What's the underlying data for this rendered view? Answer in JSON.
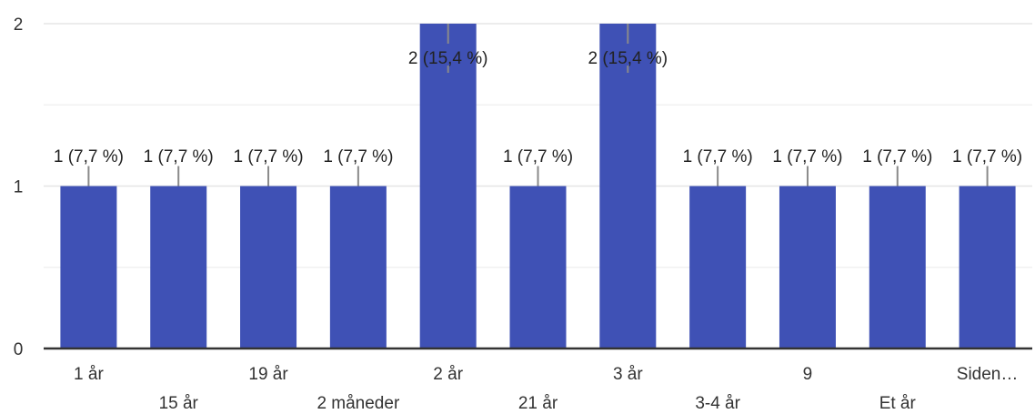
{
  "chart_data": {
    "type": "bar",
    "categories": [
      "1 år",
      "15 år",
      "19 år",
      "2 måneder",
      "2 år",
      "21 år",
      "3 år",
      "3-4 år",
      "9",
      "Et år",
      "Siden…"
    ],
    "values": [
      1,
      1,
      1,
      1,
      2,
      1,
      2,
      1,
      1,
      1,
      1
    ],
    "data_labels": [
      "1 (7,7 %)",
      "1 (7,7 %)",
      "1 (7,7 %)",
      "1 (7,7 %)",
      "2 (15,4 %)",
      "1 (7,7 %)",
      "2 (15,4 %)",
      "1 (7,7 %)",
      "1 (7,7 %)",
      "1 (7,7 %)",
      "1 (7,7 %)"
    ],
    "y_ticks": [
      "0",
      "1",
      "2"
    ],
    "ylim": [
      0,
      2
    ],
    "grid": true,
    "bar_color": "#3f51b5",
    "title": "",
    "xlabel": "",
    "ylabel": ""
  }
}
